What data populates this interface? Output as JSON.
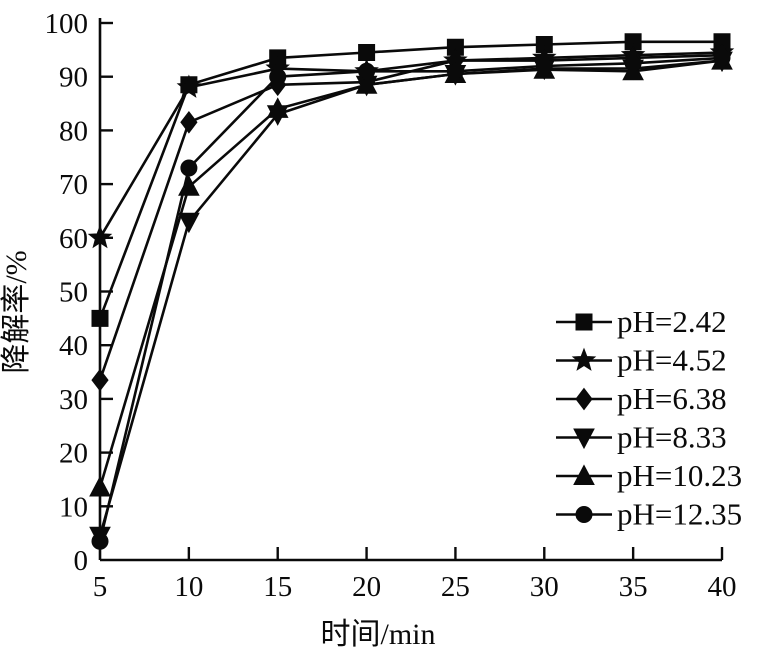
{
  "chart_data": {
    "type": "line",
    "title": "",
    "xlabel": "时间/min",
    "ylabel": "降解率/%",
    "x": [
      5,
      10,
      15,
      20,
      25,
      30,
      35,
      40
    ],
    "xlim": [
      5,
      40
    ],
    "ylim": [
      0,
      100
    ],
    "x_ticks": [
      5,
      10,
      15,
      20,
      25,
      30,
      35,
      40
    ],
    "y_ticks": [
      0,
      10,
      20,
      30,
      40,
      50,
      60,
      70,
      80,
      90,
      100
    ],
    "grid": false,
    "legend_position": "inside-right",
    "line_color": "#0a0a0a",
    "series": [
      {
        "name": "pH=2.42",
        "marker": "square",
        "values": [
          45,
          88.5,
          93.5,
          94.5,
          95.5,
          96,
          96.5,
          96.5
        ]
      },
      {
        "name": "pH=4.52",
        "marker": "star",
        "values": [
          60,
          88,
          91.5,
          91,
          93,
          93.5,
          94,
          94.5
        ]
      },
      {
        "name": "pH=6.38",
        "marker": "diamond",
        "values": [
          33.5,
          81.5,
          88.5,
          89,
          93,
          93,
          93.5,
          94
        ]
      },
      {
        "name": "pH=8.33",
        "marker": "triangle-down",
        "values": [
          4.5,
          63,
          83,
          88.5,
          90.5,
          91.5,
          91.5,
          93
        ]
      },
      {
        "name": "pH=10.23",
        "marker": "triangle-up",
        "values": [
          13.5,
          69.5,
          84,
          88.5,
          90.5,
          91.3,
          91,
          93
        ]
      },
      {
        "name": "pH=12.35",
        "marker": "circle",
        "values": [
          3.5,
          73,
          90,
          91,
          91,
          92,
          92.5,
          93.5
        ]
      }
    ]
  }
}
